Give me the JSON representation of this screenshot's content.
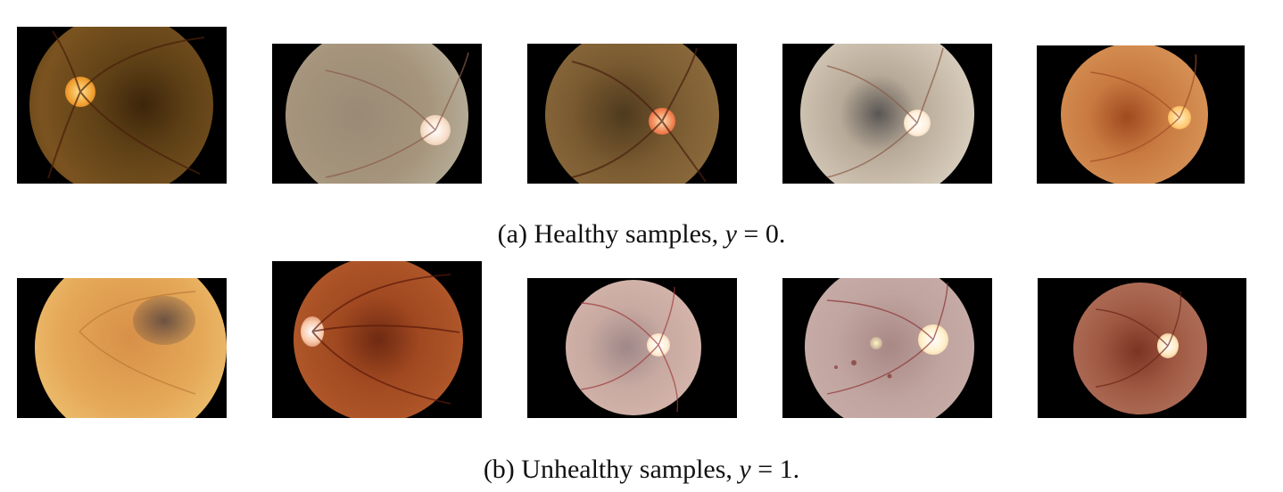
{
  "figure": {
    "rows": [
      {
        "caption_label": "(a)",
        "caption_text": "Healthy samples,",
        "caption_math_var": "y",
        "caption_math_rest": " = 0.",
        "images": [
          {
            "name": "healthy-fundus-1",
            "bg": "#6b4a1c",
            "disc": "#f0b040",
            "vessel": "#5a2a10"
          },
          {
            "name": "healthy-fundus-2",
            "bg": "#a99a84",
            "disc": "#f8ece0",
            "vessel": "#9a6a5a"
          },
          {
            "name": "healthy-fundus-3",
            "bg": "#7a5a32",
            "disc": "#f49060",
            "vessel": "#5a2a14"
          },
          {
            "name": "healthy-fundus-4",
            "bg": "#cbbfae",
            "disc": "#fff2e0",
            "vessel": "#8a5a44"
          },
          {
            "name": "healthy-fundus-5",
            "bg": "#cc8850",
            "disc": "#ffdca0",
            "vessel": "#a0502a"
          }
        ]
      },
      {
        "caption_label": "(b)",
        "caption_text": "Unhealthy samples,",
        "caption_math_var": "y",
        "caption_math_rest": " = 1.",
        "images": [
          {
            "name": "unhealthy-fundus-1",
            "bg": "#e0a050",
            "disc": "#f0c070",
            "vessel": "#b07030"
          },
          {
            "name": "unhealthy-fundus-2",
            "bg": "#a04a22",
            "disc": "#f8d0b0",
            "vessel": "#6a1c0c"
          },
          {
            "name": "unhealthy-fundus-3",
            "bg": "#c8a8a0",
            "disc": "#fff0d8",
            "vessel": "#a04848"
          },
          {
            "name": "unhealthy-fundus-4",
            "bg": "#b89890",
            "disc": "#fff0d0",
            "vessel": "#8a3a3a"
          },
          {
            "name": "unhealthy-fundus-5",
            "bg": "#a86048",
            "disc": "#ffe8c0",
            "vessel": "#7a2a1a"
          }
        ]
      }
    ]
  }
}
